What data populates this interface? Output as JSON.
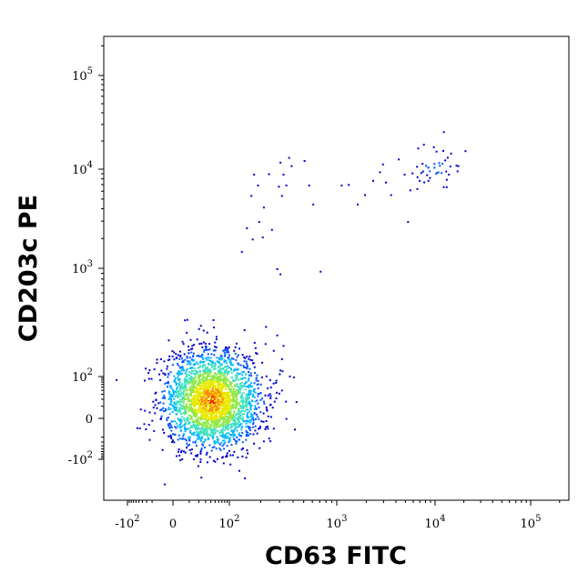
{
  "chart_data": {
    "type": "scatter",
    "title": "",
    "xlabel": "CD63 FITC",
    "ylabel": "CD203c PE",
    "x_scale": "biexponential",
    "y_scale": "biexponential",
    "xlim": [
      -300,
      250000
    ],
    "ylim": [
      -500,
      250000
    ],
    "grid": false,
    "x_ticks": [
      {
        "base": "-10",
        "exp": "2",
        "value": -100
      },
      {
        "base": "0",
        "exp": "",
        "value": 0
      },
      {
        "base": "10",
        "exp": "2",
        "value": 100
      },
      {
        "base": "10",
        "exp": "3",
        "value": 1000
      },
      {
        "base": "10",
        "exp": "4",
        "value": 10000
      },
      {
        "base": "10",
        "exp": "5",
        "value": 100000
      }
    ],
    "y_ticks": [
      {
        "base": "-10",
        "exp": "2",
        "value": -100
      },
      {
        "base": "0",
        "exp": "",
        "value": 0
      },
      {
        "base": "10",
        "exp": "2",
        "value": 100
      },
      {
        "base": "10",
        "exp": "3",
        "value": 1000
      },
      {
        "base": "10",
        "exp": "4",
        "value": 10000
      },
      {
        "base": "10",
        "exp": "5",
        "value": 100000
      }
    ],
    "density_colormap": [
      "#0000cc",
      "#0055ff",
      "#00b7ff",
      "#3fe0c0",
      "#8fe84a",
      "#e8e800",
      "#ff8800",
      "#ff1a00"
    ],
    "populations": [
      {
        "label": "",
        "center_x": 40,
        "center_y": 20,
        "spread_x": 0.5,
        "spread_y": 0.55,
        "approx_events": 2600
      },
      {
        "label": "",
        "center_x": 10000,
        "center_y": 11000,
        "spread_x": 0.15,
        "spread_y": 0.1,
        "approx_events": 45
      }
    ],
    "scattered_points": [
      [
        170,
        9000
      ],
      [
        185,
        7000
      ],
      [
        160,
        5500
      ],
      [
        210,
        4200
      ],
      [
        235,
        9100
      ],
      [
        190,
        3000
      ],
      [
        250,
        2500
      ],
      [
        165,
        2000
      ],
      [
        300,
        12000
      ],
      [
        320,
        9000
      ],
      [
        340,
        7000
      ],
      [
        310,
        5500
      ],
      [
        360,
        13500
      ],
      [
        380,
        11000
      ],
      [
        290,
        6800
      ],
      [
        500,
        12500
      ],
      [
        600,
        4500
      ],
      [
        550,
        7000
      ],
      [
        700,
        950
      ],
      [
        280,
        1000
      ],
      [
        300,
        900
      ],
      [
        280,
        250
      ],
      [
        320,
        200
      ],
      [
        310,
        150
      ],
      [
        1100,
        7000
      ],
      [
        1300,
        7100
      ],
      [
        1600,
        4500
      ],
      [
        1900,
        5600
      ],
      [
        2300,
        7800
      ],
      [
        2700,
        9500
      ],
      [
        3100,
        7500
      ],
      [
        3500,
        5600
      ],
      [
        2900,
        11500
      ],
      [
        5200,
        3000
      ],
      [
        4200,
        13000
      ],
      [
        4800,
        9000
      ],
      [
        220,
        300
      ],
      [
        400,
        100
      ],
      [
        260,
        180
      ],
      [
        130,
        1500
      ],
      [
        145,
        2600
      ],
      [
        205,
        2100
      ]
    ]
  }
}
